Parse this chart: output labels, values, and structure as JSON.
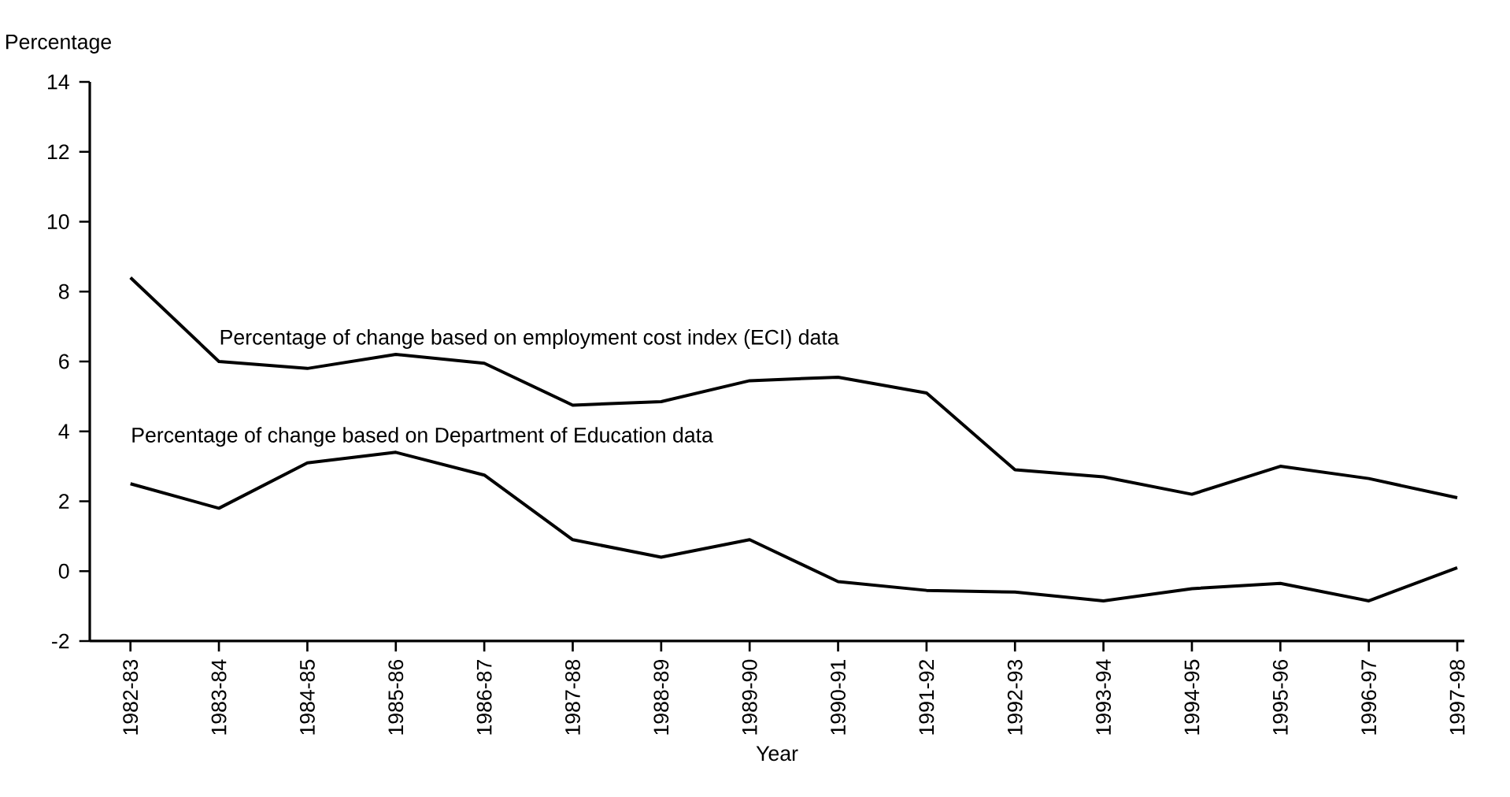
{
  "chart_data": {
    "type": "line",
    "xlabel": "Year",
    "ylabel": "Percentage",
    "categories": [
      "1982-83",
      "1983-84",
      "1984-85",
      "1985-86",
      "1986-87",
      "1987-88",
      "1988-89",
      "1989-90",
      "1990-91",
      "1991-92",
      "1992-93",
      "1993-94",
      "1994-95",
      "1995-96",
      "1996-97",
      "1997-98"
    ],
    "ylim": [
      -2,
      14
    ],
    "yticks": [
      -2,
      0,
      2,
      4,
      6,
      8,
      10,
      12,
      14
    ],
    "grid": false,
    "legend": false,
    "line_style": "solid",
    "marker": "none",
    "series": [
      {
        "name": "Percentage of change based on employment cost index (ECI) data",
        "color": "#000000",
        "values": [
          8.4,
          6.0,
          5.8,
          6.2,
          5.95,
          4.75,
          4.85,
          5.45,
          5.55,
          5.1,
          2.9,
          2.7,
          2.2,
          3.0,
          2.65,
          2.1
        ]
      },
      {
        "name": "Percentage of change based on Department of Education data",
        "color": "#000000",
        "values": [
          2.5,
          1.8,
          3.1,
          3.4,
          2.75,
          0.9,
          0.4,
          0.9,
          -0.3,
          -0.55,
          -0.6,
          -0.85,
          -0.5,
          -0.35,
          -0.85,
          0.1
        ]
      }
    ]
  }
}
